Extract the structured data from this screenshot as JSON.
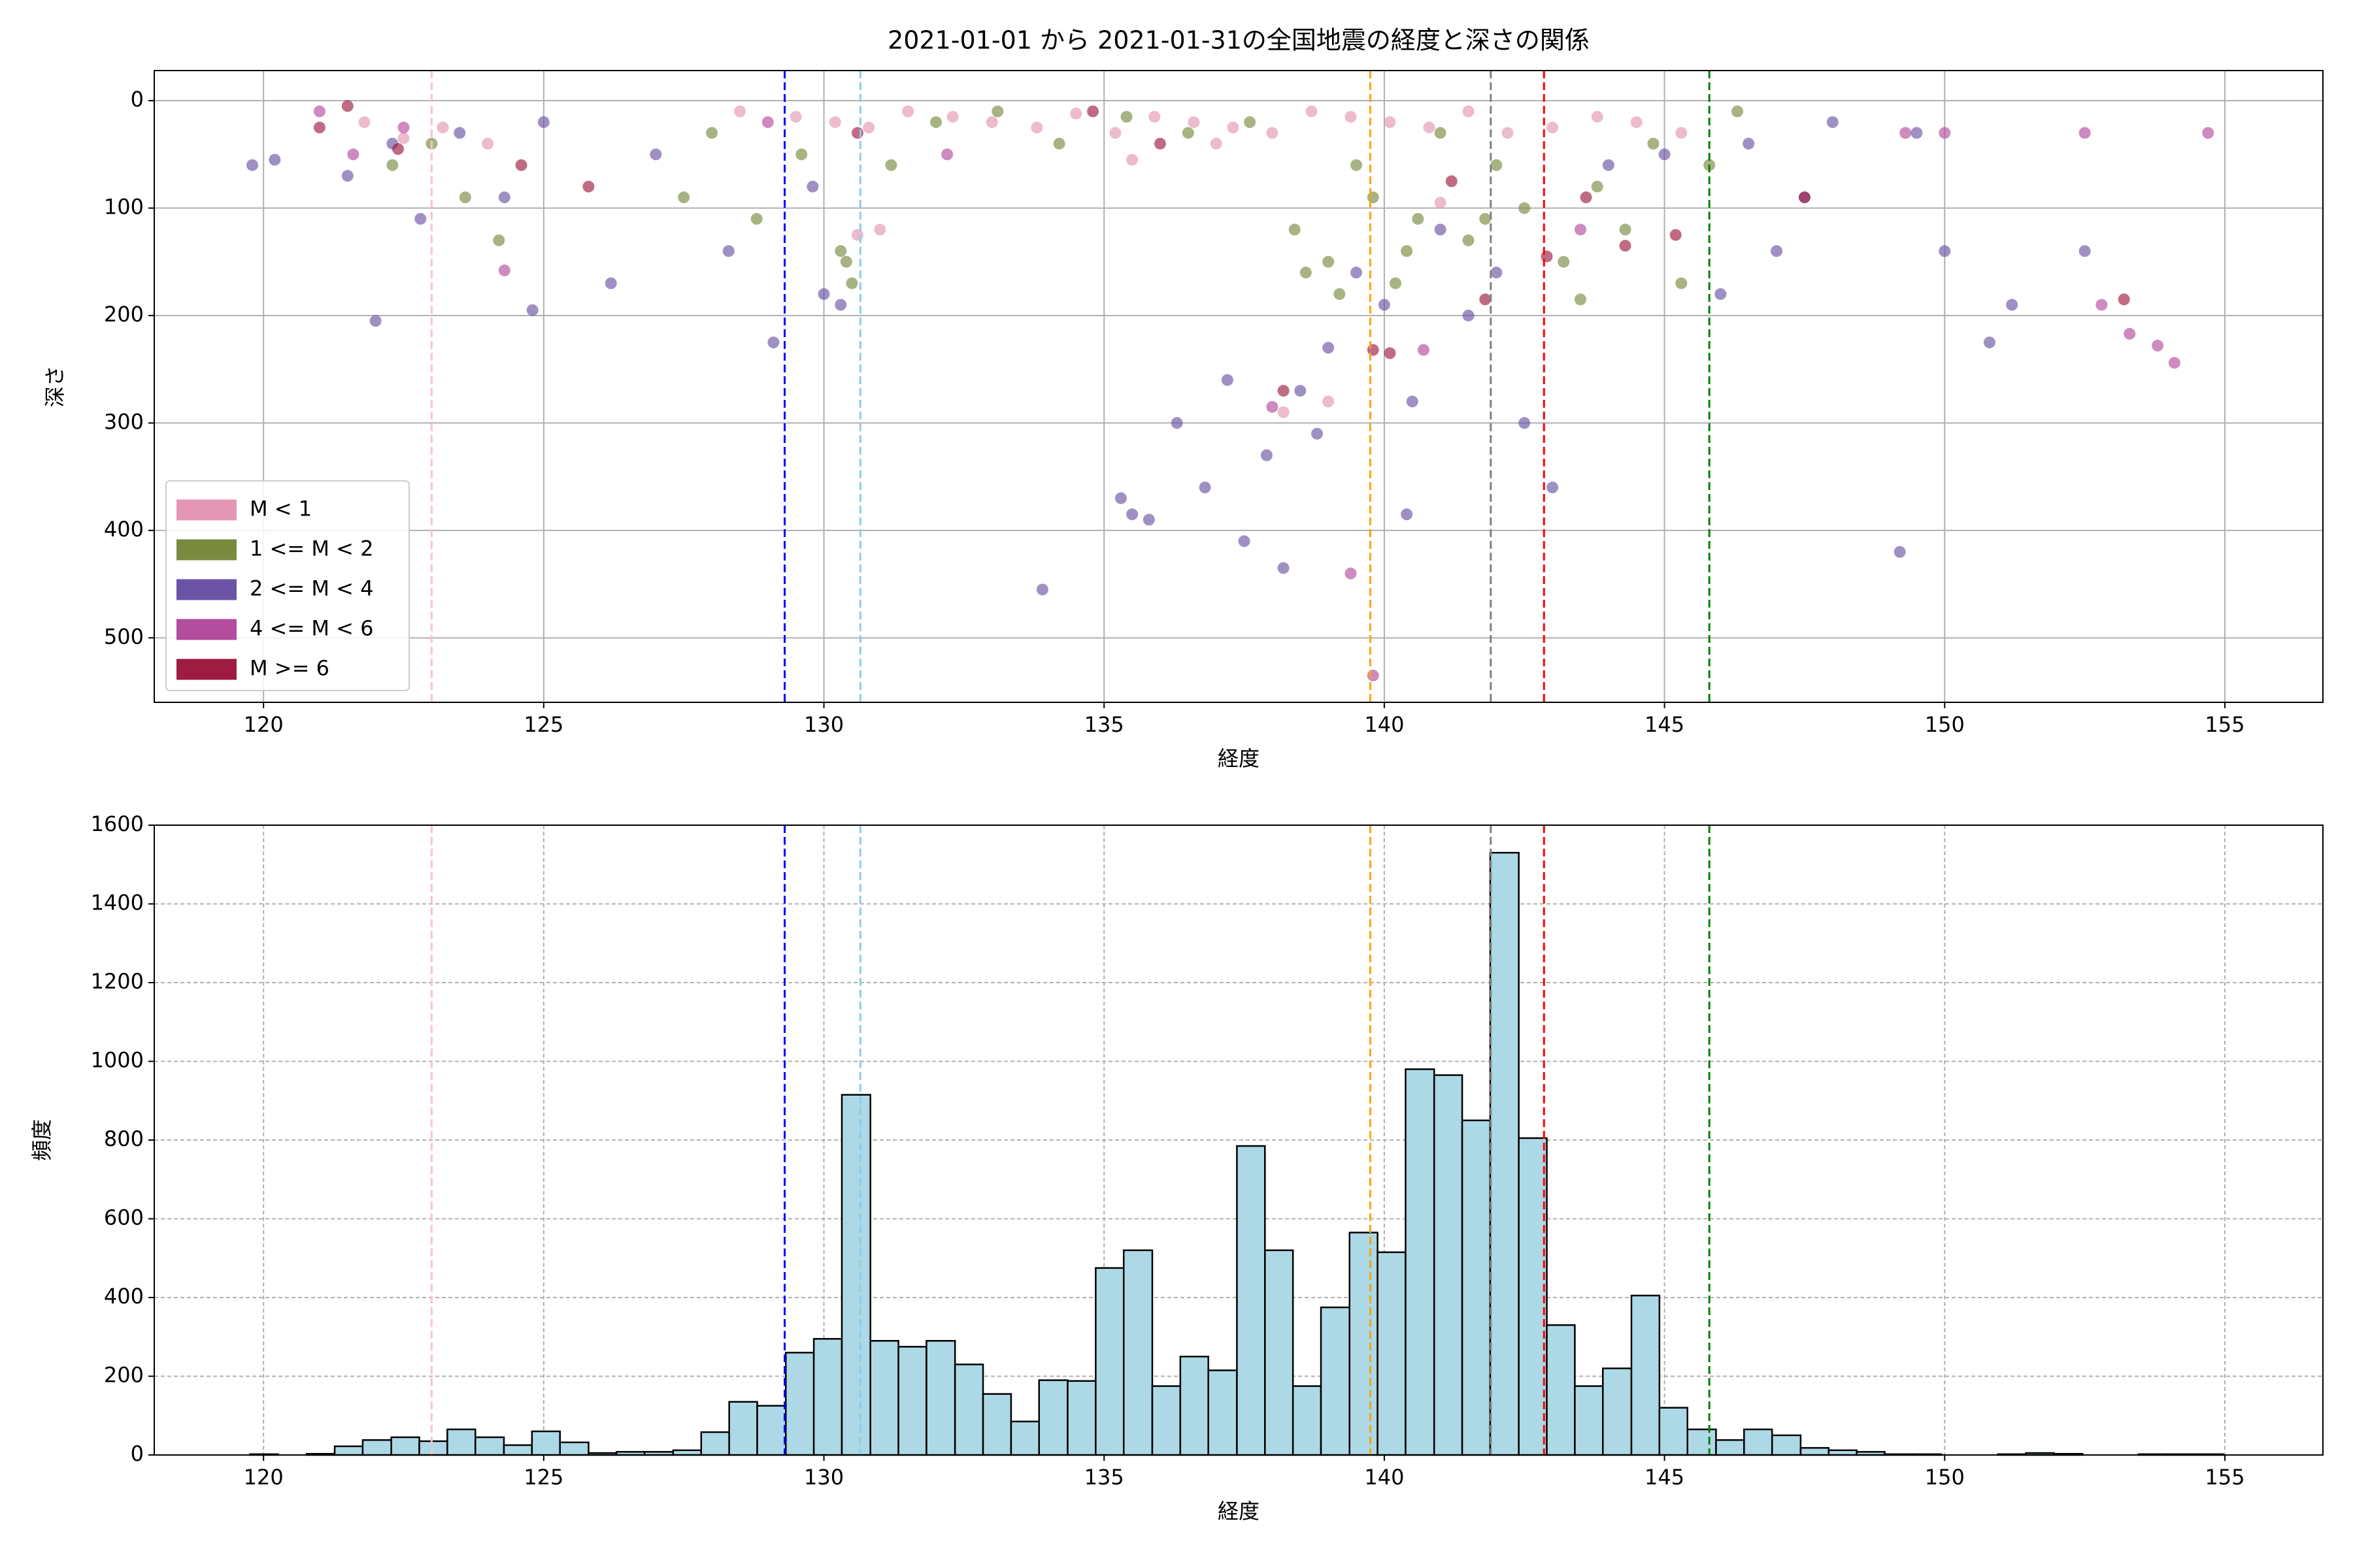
{
  "chart_data": [
    {
      "type": "scatter",
      "title": "2021-01-01 から 2021-01-31の全国地震の経度と深さの関係",
      "xlabel": "経度",
      "ylabel": "深さ",
      "xlim": [
        118.05,
        156.75
      ],
      "ylim": [
        -28,
        560
      ],
      "y_inverted": true,
      "xticks": [
        120,
        125,
        130,
        135,
        140,
        145,
        150,
        155
      ],
      "yticks": [
        0,
        100,
        200,
        300,
        400,
        500
      ],
      "grid": true,
      "legend": "lower left",
      "series": [
        {
          "name": "M < 1",
          "color": "#e497b4",
          "x": [
            121.8,
            122.5,
            123.2,
            124.0,
            128.5,
            129.5,
            130.2,
            130.8,
            131.5,
            132.3,
            133.0,
            133.8,
            134.5,
            135.2,
            135.9,
            136.6,
            137.3,
            138.0,
            138.7,
            139.4,
            140.1,
            140.8,
            141.5,
            142.2,
            143.0,
            143.8,
            144.5,
            145.3,
            131.0,
            135.5,
            137.0,
            139.0,
            141.0,
            138.2,
            130.6
          ],
          "values": [
            20,
            35,
            25,
            40,
            10,
            15,
            20,
            25,
            10,
            15,
            20,
            25,
            12,
            30,
            15,
            20,
            25,
            30,
            10,
            15,
            20,
            25,
            10,
            30,
            25,
            15,
            20,
            30,
            120,
            55,
            40,
            280,
            95,
            290,
            125
          ]
        },
        {
          "name": "1 <= M < 2",
          "color": "#7a8b40",
          "x": [
            122.3,
            123.0,
            123.6,
            124.2,
            128.0,
            128.8,
            129.6,
            130.4,
            130.5,
            130.3,
            131.2,
            132.0,
            133.1,
            134.2,
            135.4,
            136.5,
            137.6,
            138.4,
            139.0,
            139.5,
            139.8,
            140.2,
            140.6,
            141.0,
            141.5,
            142.0,
            142.5,
            143.2,
            143.8,
            144.3,
            144.8,
            145.3,
            145.8,
            146.3,
            138.6,
            139.2,
            140.4,
            141.8,
            143.5,
            127.5
          ],
          "values": [
            60,
            40,
            90,
            130,
            30,
            110,
            50,
            150,
            170,
            140,
            60,
            20,
            10,
            40,
            15,
            30,
            20,
            120,
            150,
            60,
            90,
            170,
            110,
            30,
            130,
            60,
            100,
            150,
            80,
            120,
            40,
            170,
            60,
            10,
            160,
            180,
            140,
            110,
            185,
            90
          ]
        },
        {
          "name": "2 <= M < 4",
          "color": "#6b54a5",
          "x": [
            119.8,
            120.2,
            121.5,
            122.0,
            122.3,
            122.8,
            123.5,
            124.3,
            124.8,
            125.0,
            126.2,
            127.0,
            128.3,
            129.1,
            129.8,
            130.0,
            130.3,
            133.9,
            135.3,
            135.8,
            136.3,
            136.8,
            137.2,
            137.5,
            137.9,
            138.2,
            138.5,
            139.0,
            139.5,
            140.0,
            140.5,
            141.0,
            141.5,
            142.0,
            142.5,
            143.0,
            144.0,
            145.0,
            146.0,
            146.5,
            147.0,
            147.5,
            148.0,
            149.5,
            150.0,
            150.8,
            151.2,
            152.5,
            149.2,
            135.5,
            140.4,
            138.8
          ],
          "values": [
            60,
            55,
            70,
            205,
            40,
            110,
            30,
            90,
            195,
            20,
            170,
            50,
            140,
            225,
            80,
            180,
            190,
            455,
            370,
            390,
            300,
            360,
            260,
            410,
            330,
            435,
            270,
            230,
            160,
            190,
            280,
            120,
            200,
            160,
            300,
            360,
            60,
            50,
            180,
            40,
            140,
            90,
            20,
            30,
            140,
            225,
            190,
            140,
            420,
            385,
            385,
            310
          ]
        },
        {
          "name": "4 <= M < 6",
          "color": "#b34d9d",
          "x": [
            121.0,
            121.6,
            122.5,
            124.3,
            129.0,
            132.2,
            138.0,
            139.4,
            140.7,
            143.5,
            149.3,
            150.0,
            152.5,
            152.8,
            153.3,
            153.8,
            154.1,
            154.7,
            139.8
          ],
          "values": [
            10,
            50,
            25,
            158,
            20,
            50,
            285,
            440,
            232,
            120,
            30,
            30,
            30,
            190,
            217,
            228,
            244,
            30,
            535
          ]
        },
        {
          "name": "M >= 6",
          "color": "#9e1b42",
          "x": [
            121.0,
            121.5,
            122.4,
            124.6,
            125.8,
            130.6,
            134.8,
            136.0,
            138.2,
            139.8,
            140.1,
            141.2,
            141.8,
            142.9,
            143.6,
            144.3,
            145.2,
            147.5,
            153.2
          ],
          "values": [
            25,
            5,
            45,
            60,
            80,
            30,
            10,
            40,
            270,
            232,
            235,
            75,
            185,
            145,
            90,
            135,
            125,
            90,
            185
          ]
        }
      ],
      "vlines": [
        {
          "x": 123.0,
          "color": "pink"
        },
        {
          "x": 129.3,
          "color": "blue"
        },
        {
          "x": 130.65,
          "color": "skyblue"
        },
        {
          "x": 139.75,
          "color": "orange"
        },
        {
          "x": 141.9,
          "color": "gray"
        },
        {
          "x": 142.85,
          "color": "red"
        },
        {
          "x": 145.8,
          "color": "green"
        }
      ]
    },
    {
      "type": "histogram",
      "xlabel": "経度",
      "ylabel": "頻度",
      "xlim": [
        118.05,
        156.75
      ],
      "ylim": [
        0,
        1600
      ],
      "xticks": [
        120,
        125,
        130,
        135,
        140,
        145,
        150,
        155
      ],
      "yticks": [
        0,
        200,
        400,
        600,
        800,
        1000,
        1200,
        1400,
        1600
      ],
      "grid": "dashed",
      "color": "#add8e6",
      "edgecolor": "#000000",
      "bins": [
        119.76,
        120.26,
        120.77,
        121.27,
        121.77,
        122.28,
        122.78,
        123.28,
        123.78,
        124.29,
        124.79,
        125.29,
        125.8,
        126.3,
        126.8,
        127.31,
        127.81,
        128.31,
        128.81,
        129.32,
        129.82,
        130.32,
        130.83,
        131.33,
        131.83,
        132.34,
        132.84,
        133.34,
        133.84,
        134.35,
        134.85,
        135.35,
        135.86,
        136.36,
        136.86,
        137.37,
        137.87,
        138.37,
        138.87,
        139.38,
        139.88,
        140.38,
        140.89,
        141.39,
        141.89,
        142.4,
        142.9,
        143.4,
        143.9,
        144.41,
        144.91,
        145.41,
        145.92,
        146.42,
        146.92,
        147.43,
        147.93,
        148.43,
        148.93,
        149.44,
        149.94,
        150.44,
        150.95,
        151.45,
        151.95,
        152.46,
        152.96,
        153.46,
        153.96,
        154.47,
        154.97
      ],
      "values": [
        2,
        0,
        3,
        22,
        38,
        45,
        35,
        65,
        45,
        25,
        60,
        32,
        5,
        8,
        8,
        12,
        58,
        135,
        125,
        260,
        295,
        915,
        290,
        275,
        290,
        230,
        155,
        85,
        190,
        188,
        475,
        520,
        175,
        250,
        215,
        785,
        520,
        175,
        375,
        565,
        515,
        980,
        965,
        850,
        1530,
        805,
        330,
        175,
        220,
        405,
        120,
        65,
        38,
        65,
        50,
        18,
        12,
        8,
        2,
        2,
        0,
        0,
        2,
        5,
        3,
        0,
        0,
        2,
        2,
        2
      ],
      "vlines": [
        {
          "x": 123.0,
          "color": "pink"
        },
        {
          "x": 129.3,
          "color": "blue"
        },
        {
          "x": 130.65,
          "color": "skyblue"
        },
        {
          "x": 139.75,
          "color": "orange"
        },
        {
          "x": 141.9,
          "color": "gray"
        },
        {
          "x": 142.85,
          "color": "red"
        },
        {
          "x": 145.8,
          "color": "green"
        }
      ]
    }
  ]
}
